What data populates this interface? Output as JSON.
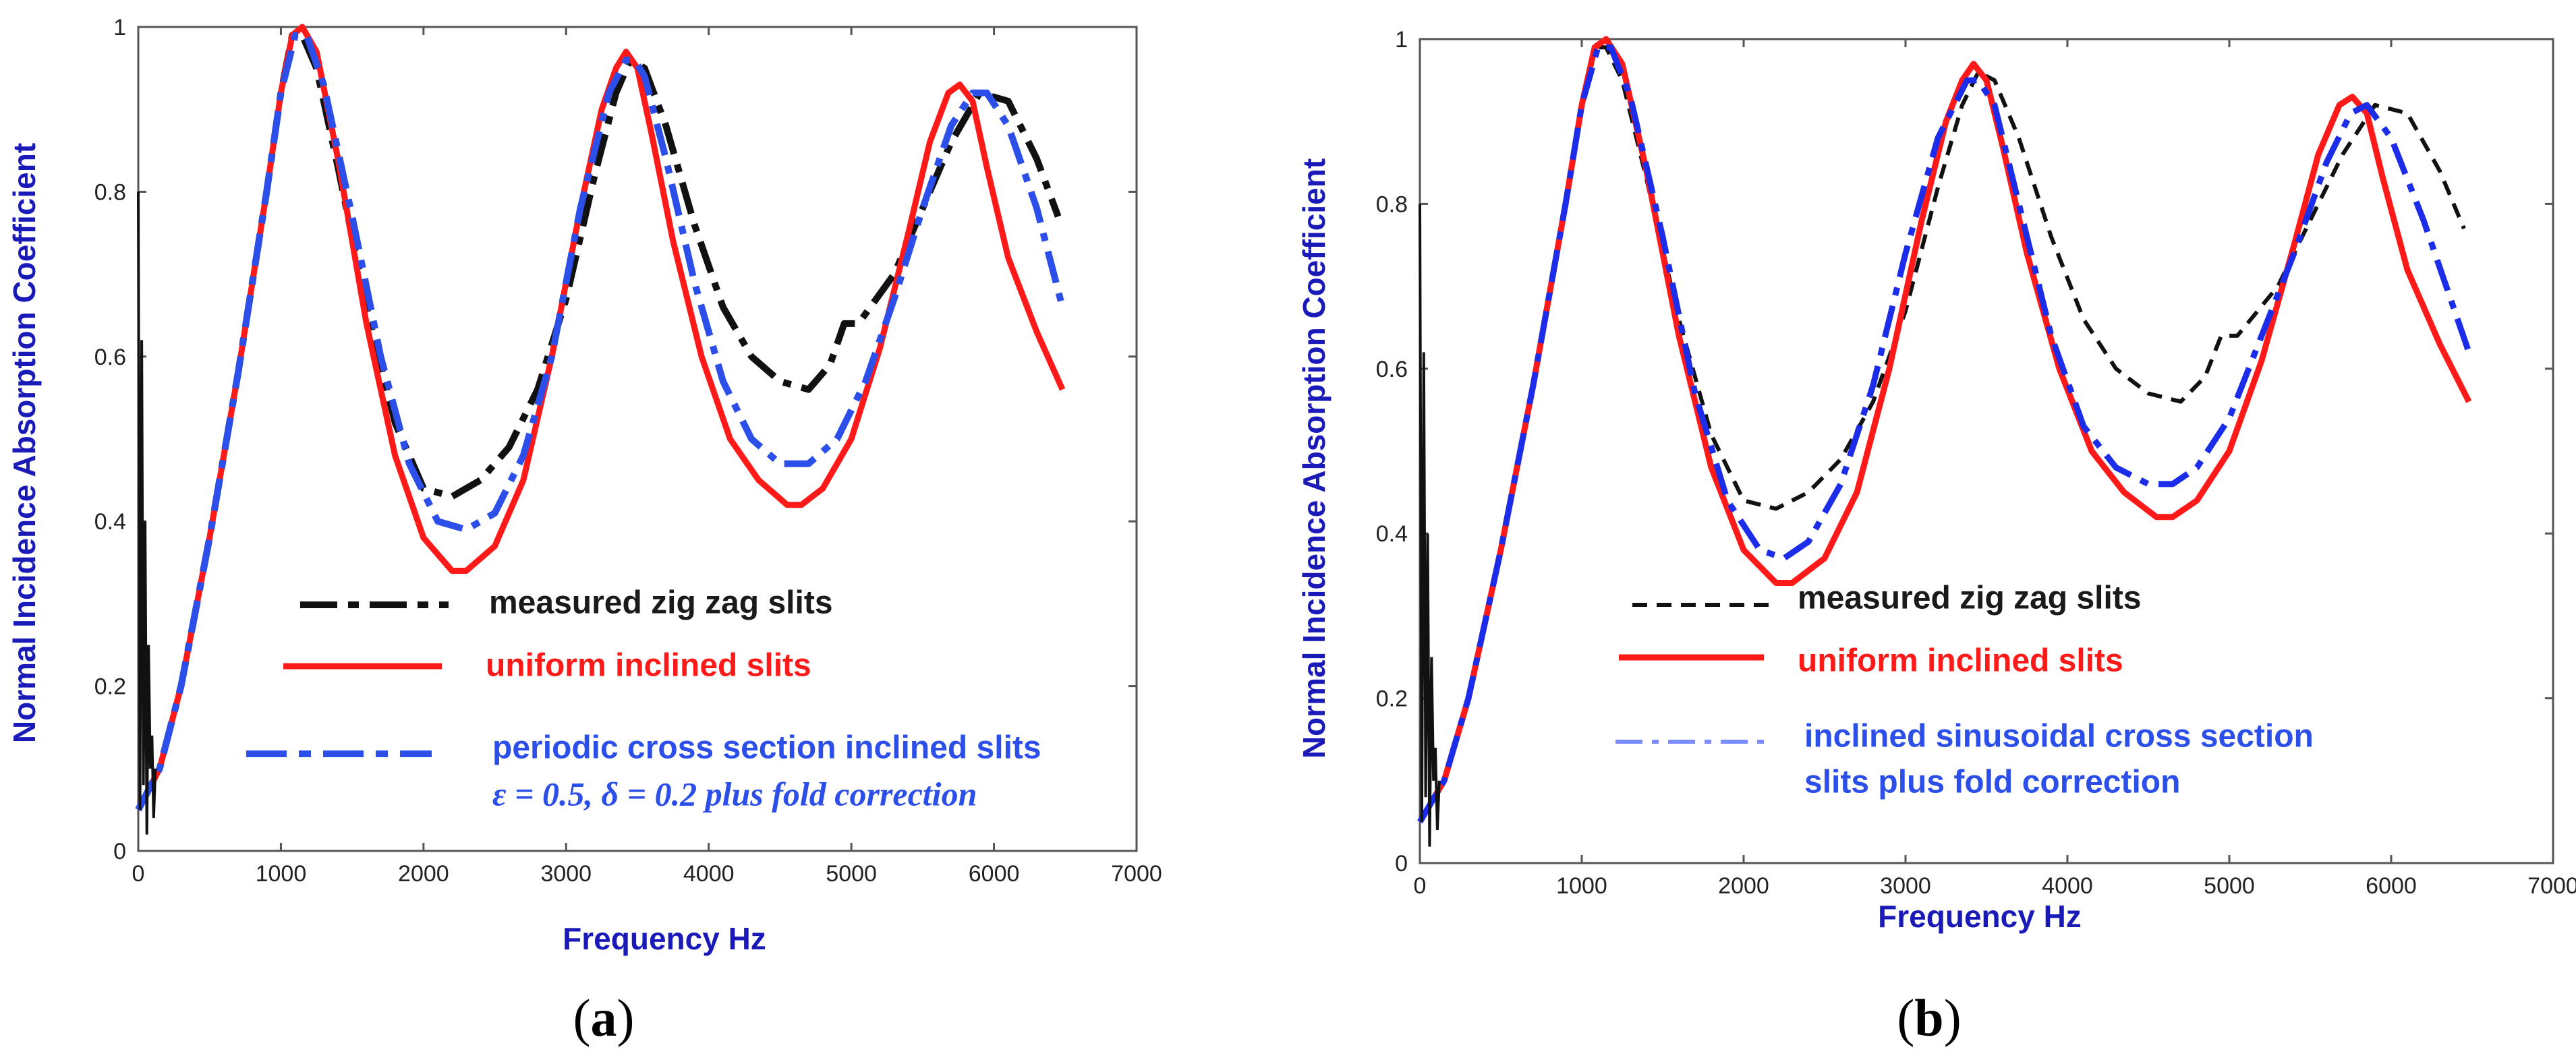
{
  "figure": {
    "caption_a_open": "(",
    "caption_a_letter": "a",
    "caption_a_close": ")",
    "caption_b_open": "(",
    "caption_b_letter": "b",
    "caption_b_close": ")"
  },
  "colors": {
    "measured": "#111111",
    "uniform": "#ff1a1a",
    "model": "#2b4fe8",
    "model_b": "#1b2de8",
    "axis_label": "#1a1ab8"
  },
  "chart_data": [
    {
      "id": "a",
      "type": "line",
      "xlabel": "Frequency Hz",
      "ylabel": "Normal Incidence Absorption Coefficient",
      "xlim": [
        0,
        7000
      ],
      "ylim": [
        0,
        1
      ],
      "xticks": [
        0,
        1000,
        2000,
        3000,
        4000,
        5000,
        6000,
        7000
      ],
      "yticks": [
        0,
        0.2,
        0.4,
        0.6,
        0.8,
        1
      ],
      "ytick_labels": [
        "0",
        "0.2",
        "0.4",
        "0.6",
        "0.8",
        "1"
      ],
      "legend": [
        {
          "series": "measured",
          "text": "measured zig zag slits",
          "color": "#111111"
        },
        {
          "series": "uniform",
          "text": "uniform inclined slits",
          "color": "#ff1a1a"
        },
        {
          "series": "model",
          "text": "periodic cross section inclined slits",
          "text2": "ε = 0.5, δ = 0.2 plus fold correction",
          "color": "#2b4fe8"
        }
      ],
      "series": [
        {
          "name": "measured zig zag slits",
          "style": "dashdot",
          "color": "#111111",
          "x": [
            0,
            150,
            300,
            500,
            700,
            900,
            1000,
            1080,
            1150,
            1250,
            1400,
            1600,
            1800,
            2000,
            2200,
            2400,
            2600,
            2800,
            3000,
            3200,
            3350,
            3450,
            3550,
            3700,
            3900,
            4100,
            4300,
            4500,
            4700,
            4850,
            4950,
            5050,
            5300,
            5500,
            5700,
            5900,
            6100,
            6300,
            6450
          ],
          "y": [
            0.05,
            0.1,
            0.2,
            0.38,
            0.58,
            0.8,
            0.92,
            0.99,
            0.99,
            0.95,
            0.83,
            0.66,
            0.52,
            0.44,
            0.43,
            0.45,
            0.49,
            0.56,
            0.67,
            0.82,
            0.92,
            0.96,
            0.95,
            0.88,
            0.76,
            0.66,
            0.6,
            0.57,
            0.56,
            0.59,
            0.64,
            0.64,
            0.7,
            0.78,
            0.86,
            0.92,
            0.91,
            0.84,
            0.77
          ]
        },
        {
          "name": "uniform inclined slits",
          "style": "solid",
          "color": "#ff1a1a",
          "x": [
            0,
            150,
            300,
            500,
            700,
            900,
            1000,
            1080,
            1150,
            1250,
            1400,
            1600,
            1800,
            2000,
            2200,
            2300,
            2500,
            2700,
            2900,
            3100,
            3250,
            3350,
            3420,
            3500,
            3600,
            3750,
            3950,
            4150,
            4350,
            4550,
            4650,
            4800,
            5000,
            5200,
            5400,
            5550,
            5680,
            5760,
            5850,
            5950,
            6100,
            6300,
            6480
          ],
          "y": [
            0.05,
            0.1,
            0.2,
            0.38,
            0.58,
            0.8,
            0.92,
            0.99,
            1.0,
            0.97,
            0.84,
            0.64,
            0.48,
            0.38,
            0.34,
            0.34,
            0.37,
            0.45,
            0.6,
            0.78,
            0.9,
            0.95,
            0.97,
            0.95,
            0.87,
            0.74,
            0.6,
            0.5,
            0.45,
            0.42,
            0.42,
            0.44,
            0.5,
            0.61,
            0.75,
            0.86,
            0.92,
            0.93,
            0.91,
            0.83,
            0.72,
            0.63,
            0.56
          ]
        },
        {
          "name": "periodic cross section inclined slits",
          "style": "dashdot",
          "color": "#2b4fe8",
          "x": [
            0,
            150,
            300,
            500,
            700,
            900,
            1000,
            1100,
            1180,
            1300,
            1500,
            1700,
            1900,
            2100,
            2300,
            2500,
            2700,
            2900,
            3100,
            3300,
            3420,
            3480,
            3550,
            3700,
            3900,
            4100,
            4300,
            4500,
            4700,
            4900,
            5100,
            5300,
            5500,
            5700,
            5850,
            5950,
            6100,
            6300,
            6480
          ],
          "y": [
            0.05,
            0.1,
            0.2,
            0.38,
            0.58,
            0.8,
            0.92,
            0.99,
            0.99,
            0.93,
            0.77,
            0.6,
            0.47,
            0.4,
            0.39,
            0.41,
            0.48,
            0.6,
            0.78,
            0.92,
            0.96,
            0.96,
            0.94,
            0.84,
            0.69,
            0.57,
            0.5,
            0.47,
            0.47,
            0.5,
            0.57,
            0.67,
            0.78,
            0.88,
            0.92,
            0.92,
            0.88,
            0.78,
            0.66
          ]
        }
      ]
    },
    {
      "id": "b",
      "type": "line",
      "xlabel": "Frequency Hz",
      "ylabel": "Normal Incidence Absorption Coefficient",
      "xlim": [
        0,
        7000
      ],
      "ylim": [
        0,
        1
      ],
      "xticks": [
        0,
        1000,
        2000,
        3000,
        4000,
        5000,
        6000,
        7000
      ],
      "yticks": [
        0,
        0.2,
        0.4,
        0.6,
        0.8,
        1
      ],
      "ytick_labels": [
        "0",
        "0.2",
        "0.4",
        "0.6",
        "0.8",
        "1"
      ],
      "legend": [
        {
          "series": "measured",
          "text": "measured zig zag slits",
          "color": "#111111"
        },
        {
          "series": "uniform",
          "text": "uniform inclined slits",
          "color": "#ff1a1a"
        },
        {
          "series": "model",
          "text": "inclined sinusoidal cross section",
          "text2": "slits plus fold correction",
          "color": "#2b4fe8"
        }
      ],
      "series": [
        {
          "name": "measured zig zag slits",
          "style": "dashed",
          "color": "#111111",
          "x": [
            0,
            150,
            300,
            500,
            700,
            900,
            1000,
            1080,
            1150,
            1250,
            1400,
            1600,
            1800,
            2000,
            2200,
            2400,
            2600,
            2800,
            3000,
            3200,
            3350,
            3450,
            3550,
            3700,
            3900,
            4100,
            4300,
            4500,
            4700,
            4850,
            4950,
            5050,
            5300,
            5500,
            5700,
            5900,
            6100,
            6300,
            6450
          ],
          "y": [
            0.05,
            0.1,
            0.2,
            0.38,
            0.58,
            0.8,
            0.92,
            0.99,
            0.99,
            0.95,
            0.83,
            0.66,
            0.52,
            0.44,
            0.43,
            0.45,
            0.49,
            0.56,
            0.67,
            0.82,
            0.92,
            0.96,
            0.95,
            0.88,
            0.76,
            0.66,
            0.6,
            0.57,
            0.56,
            0.59,
            0.64,
            0.64,
            0.7,
            0.78,
            0.86,
            0.92,
            0.91,
            0.84,
            0.77
          ]
        },
        {
          "name": "uniform inclined slits",
          "style": "solid",
          "color": "#ff1a1a",
          "x": [
            0,
            150,
            300,
            500,
            700,
            900,
            1000,
            1080,
            1150,
            1250,
            1400,
            1600,
            1800,
            2000,
            2200,
            2300,
            2500,
            2700,
            2900,
            3100,
            3250,
            3350,
            3420,
            3500,
            3600,
            3750,
            3950,
            4150,
            4350,
            4550,
            4650,
            4800,
            5000,
            5200,
            5400,
            5550,
            5680,
            5760,
            5850,
            5950,
            6100,
            6300,
            6480
          ],
          "y": [
            0.05,
            0.1,
            0.2,
            0.38,
            0.58,
            0.8,
            0.92,
            0.99,
            1.0,
            0.97,
            0.84,
            0.64,
            0.48,
            0.38,
            0.34,
            0.34,
            0.37,
            0.45,
            0.6,
            0.78,
            0.9,
            0.95,
            0.97,
            0.95,
            0.87,
            0.74,
            0.6,
            0.5,
            0.45,
            0.42,
            0.42,
            0.44,
            0.5,
            0.61,
            0.75,
            0.86,
            0.92,
            0.93,
            0.91,
            0.83,
            0.72,
            0.63,
            0.56
          ]
        },
        {
          "name": "inclined sinusoidal cross section slits plus fold correction",
          "style": "dashdot",
          "color": "#1b2de8",
          "x": [
            0,
            150,
            300,
            500,
            700,
            900,
            1000,
            1100,
            1180,
            1300,
            1500,
            1700,
            1900,
            2100,
            2250,
            2400,
            2600,
            2800,
            3000,
            3200,
            3380,
            3450,
            3550,
            3700,
            3900,
            4100,
            4300,
            4500,
            4650,
            4800,
            5000,
            5200,
            5400,
            5600,
            5750,
            5850,
            6000,
            6200,
            6480
          ],
          "y": [
            0.05,
            0.1,
            0.2,
            0.38,
            0.58,
            0.8,
            0.92,
            0.99,
            0.99,
            0.93,
            0.76,
            0.57,
            0.44,
            0.38,
            0.37,
            0.39,
            0.46,
            0.58,
            0.74,
            0.88,
            0.95,
            0.95,
            0.92,
            0.8,
            0.64,
            0.53,
            0.48,
            0.46,
            0.46,
            0.48,
            0.54,
            0.64,
            0.74,
            0.85,
            0.91,
            0.92,
            0.88,
            0.78,
            0.62
          ]
        }
      ]
    }
  ]
}
